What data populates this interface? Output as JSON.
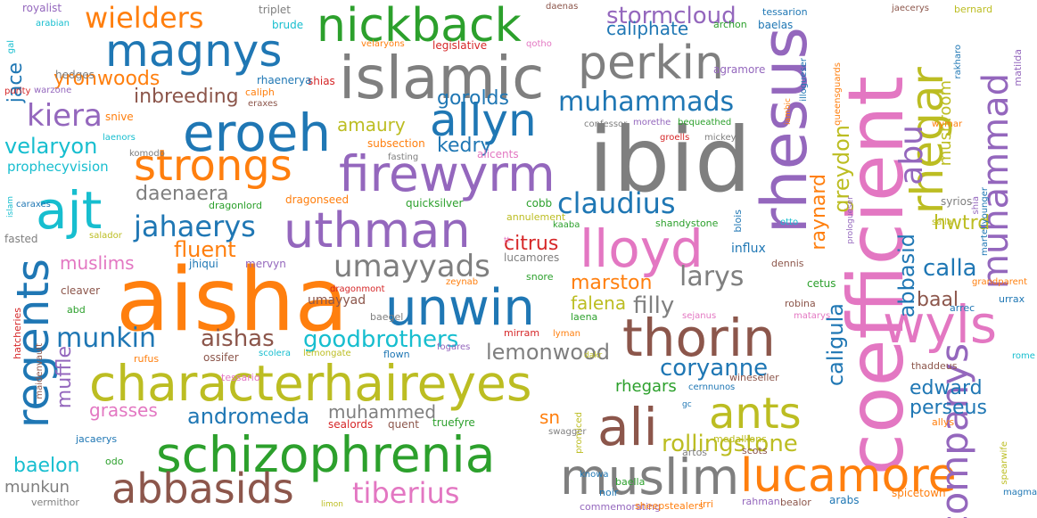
{
  "palette": {
    "blue": "#1f77b4",
    "orange": "#ff7f0e",
    "green": "#2ca02c",
    "red": "#d62728",
    "purple": "#9467bd",
    "brown": "#8c564b",
    "pink": "#e377c2",
    "gray": "#7f7f7f",
    "olive": "#bcbd22",
    "cyan": "#17becf"
  },
  "words": [
    {
      "text": "ibid",
      "color": "gray"
    },
    {
      "text": "aisha",
      "color": "orange"
    },
    {
      "text": "coefficient",
      "color": "pink"
    },
    {
      "text": "rhesus",
      "color": "purple"
    },
    {
      "text": "characterhaireyes",
      "color": "olive"
    },
    {
      "text": "schizophrenia",
      "color": "green"
    },
    {
      "text": "islamic",
      "color": "gray"
    },
    {
      "text": "nickback",
      "color": "green"
    },
    {
      "text": "magnys",
      "color": "blue"
    },
    {
      "text": "eroeh",
      "color": "blue"
    },
    {
      "text": "strongs",
      "color": "orange"
    },
    {
      "text": "firewyrm",
      "color": "purple"
    },
    {
      "text": "uthman",
      "color": "purple"
    },
    {
      "text": "ajt",
      "color": "cyan"
    },
    {
      "text": "perkin",
      "color": "gray"
    },
    {
      "text": "allyn",
      "color": "blue"
    },
    {
      "text": "thorin",
      "color": "brown"
    },
    {
      "text": "lloyd",
      "color": "pink"
    },
    {
      "text": "unwin",
      "color": "blue"
    },
    {
      "text": "muslim",
      "color": "gray"
    },
    {
      "text": "lucamore",
      "color": "orange"
    },
    {
      "text": "ali",
      "color": "brown"
    },
    {
      "text": "ants",
      "color": "olive"
    },
    {
      "text": "wyls",
      "color": "pink"
    },
    {
      "text": "abbasids",
      "color": "brown"
    },
    {
      "text": "regents",
      "color": "blue"
    },
    {
      "text": "muhammad",
      "color": "purple"
    },
    {
      "text": "rhegar",
      "color": "olive"
    },
    {
      "text": "companys",
      "color": "purple"
    },
    {
      "text": "wielders",
      "color": "orange"
    },
    {
      "text": "claudius",
      "color": "blue"
    },
    {
      "text": "jahaerys",
      "color": "blue"
    },
    {
      "text": "umayyads",
      "color": "gray"
    },
    {
      "text": "muhammads",
      "color": "blue"
    },
    {
      "text": "kiera",
      "color": "purple"
    },
    {
      "text": "tiberius",
      "color": "pink"
    },
    {
      "text": "goodbrothers",
      "color": "cyan"
    },
    {
      "text": "abu",
      "color": "purple"
    },
    {
      "text": "larys",
      "color": "gray"
    },
    {
      "text": "munkin",
      "color": "blue"
    },
    {
      "text": "stormcloud",
      "color": "purple"
    },
    {
      "text": "lemonwood",
      "color": "gray"
    },
    {
      "text": "aishas",
      "color": "brown"
    },
    {
      "text": "andromeda",
      "color": "blue"
    },
    {
      "text": "coryanne",
      "color": "blue"
    },
    {
      "text": "rollingstone",
      "color": "olive"
    },
    {
      "text": "daenaera",
      "color": "gray"
    },
    {
      "text": "yronwoods",
      "color": "orange"
    },
    {
      "text": "inbreeding",
      "color": "brown"
    },
    {
      "text": "velaryon",
      "color": "cyan"
    },
    {
      "text": "fluent",
      "color": "orange"
    },
    {
      "text": "citrus",
      "color": "red"
    },
    {
      "text": "marston",
      "color": "orange"
    },
    {
      "text": "falena",
      "color": "olive"
    },
    {
      "text": "filly",
      "color": "gray"
    },
    {
      "text": "calla",
      "color": "blue"
    },
    {
      "text": "baal",
      "color": "brown"
    },
    {
      "text": "caligula",
      "color": "blue"
    },
    {
      "text": "perseus",
      "color": "blue"
    },
    {
      "text": "edward",
      "color": "blue"
    },
    {
      "text": "hwtrd",
      "color": "olive"
    },
    {
      "text": "abbasid",
      "color": "blue"
    },
    {
      "text": "raynard",
      "color": "orange"
    },
    {
      "text": "greydon",
      "color": "olive"
    },
    {
      "text": "muffle",
      "color": "purple"
    },
    {
      "text": "jace",
      "color": "blue"
    },
    {
      "text": "gorolds",
      "color": "blue"
    },
    {
      "text": "amaury",
      "color": "olive"
    },
    {
      "text": "kedry",
      "color": "blue"
    },
    {
      "text": "caliphate",
      "color": "blue"
    },
    {
      "text": "muslims",
      "color": "pink"
    },
    {
      "text": "grasses",
      "color": "pink"
    },
    {
      "text": "baelon",
      "color": "cyan"
    },
    {
      "text": "munkun",
      "color": "gray"
    },
    {
      "text": "muhammed",
      "color": "gray"
    },
    {
      "text": "rhegars",
      "color": "green"
    },
    {
      "text": "sn",
      "color": "orange"
    },
    {
      "text": "mushroom",
      "color": "olive"
    },
    {
      "text": "prophecyvision",
      "color": "cyan"
    },
    {
      "text": "royalist",
      "color": "purple"
    },
    {
      "text": "arabian",
      "color": "cyan"
    },
    {
      "text": "gal",
      "color": "cyan"
    },
    {
      "text": "hedges",
      "color": "gray"
    },
    {
      "text": "purity",
      "color": "red"
    },
    {
      "text": "warzone",
      "color": "purple"
    },
    {
      "text": "triplet",
      "color": "gray"
    },
    {
      "text": "brude",
      "color": "cyan"
    },
    {
      "text": "shias",
      "color": "red"
    },
    {
      "text": "caliph",
      "color": "orange"
    },
    {
      "text": "rhaenerya",
      "color": "blue"
    },
    {
      "text": "eraxes",
      "color": "brown"
    },
    {
      "text": "snive",
      "color": "orange"
    },
    {
      "text": "laenors",
      "color": "cyan"
    },
    {
      "text": "komodo",
      "color": "gray"
    },
    {
      "text": "legislative",
      "color": "red"
    },
    {
      "text": "velaryons",
      "color": "orange"
    },
    {
      "text": "qotho",
      "color": "pink"
    },
    {
      "text": "daenas",
      "color": "brown"
    },
    {
      "text": "archon",
      "color": "green"
    },
    {
      "text": "baelas",
      "color": "blue"
    },
    {
      "text": "tessarion",
      "color": "blue"
    },
    {
      "text": "bernard",
      "color": "olive"
    },
    {
      "text": "jaecerys",
      "color": "brown"
    },
    {
      "text": "agramore",
      "color": "purple"
    },
    {
      "text": "subsection",
      "color": "orange"
    },
    {
      "text": "fasting",
      "color": "gray"
    },
    {
      "text": "alicents",
      "color": "pink"
    },
    {
      "text": "confessor",
      "color": "gray"
    },
    {
      "text": "morethe",
      "color": "purple"
    },
    {
      "text": "bequeathed",
      "color": "green"
    },
    {
      "text": "groells",
      "color": "red"
    },
    {
      "text": "mickey",
      "color": "gray"
    },
    {
      "text": "wymar",
      "color": "orange"
    },
    {
      "text": "rakharo",
      "color": "blue"
    },
    {
      "text": "matilda",
      "color": "purple"
    },
    {
      "text": "dragonseed",
      "color": "orange"
    },
    {
      "text": "quicksilver",
      "color": "green"
    },
    {
      "text": "dragonlord",
      "color": "green"
    },
    {
      "text": "cobb",
      "color": "green"
    },
    {
      "text": "shandystone",
      "color": "green"
    },
    {
      "text": "annulement",
      "color": "olive"
    },
    {
      "text": "kaaba",
      "color": "green"
    },
    {
      "text": "caraxes",
      "color": "blue"
    },
    {
      "text": "islam",
      "color": "cyan"
    },
    {
      "text": "fasted",
      "color": "gray"
    },
    {
      "text": "salador",
      "color": "olive"
    },
    {
      "text": "jhiqui",
      "color": "blue"
    },
    {
      "text": "mervyn",
      "color": "purple"
    },
    {
      "text": "lucamores",
      "color": "gray"
    },
    {
      "text": "dragonmont",
      "color": "red"
    },
    {
      "text": "zeynab",
      "color": "orange"
    },
    {
      "text": "snore",
      "color": "green"
    },
    {
      "text": "umayyad",
      "color": "brown"
    },
    {
      "text": "baegel",
      "color": "gray"
    },
    {
      "text": "mirram",
      "color": "red"
    },
    {
      "text": "lyman",
      "color": "orange"
    },
    {
      "text": "laena",
      "color": "green"
    },
    {
      "text": "sejanus",
      "color": "pink"
    },
    {
      "text": "matarys",
      "color": "pink"
    },
    {
      "text": "cleaver",
      "color": "brown"
    },
    {
      "text": "abd",
      "color": "green"
    },
    {
      "text": "hatcheries",
      "color": "red"
    },
    {
      "text": "maidenvault",
      "color": "brown"
    },
    {
      "text": "rufus",
      "color": "orange"
    },
    {
      "text": "ossifer",
      "color": "brown"
    },
    {
      "text": "scolera",
      "color": "cyan"
    },
    {
      "text": "lemongate",
      "color": "olive"
    },
    {
      "text": "flown",
      "color": "blue"
    },
    {
      "text": "fogares",
      "color": "purple"
    },
    {
      "text": "cetus",
      "color": "green"
    },
    {
      "text": "influx",
      "color": "blue"
    },
    {
      "text": "dennis",
      "color": "brown"
    },
    {
      "text": "blois",
      "color": "blue"
    },
    {
      "text": "otto",
      "color": "cyan"
    },
    {
      "text": "syrios",
      "color": "gray"
    },
    {
      "text": "salla",
      "color": "olive"
    },
    {
      "text": "shia",
      "color": "purple"
    },
    {
      "text": "martellyounger",
      "color": "blue"
    },
    {
      "text": "prologueser",
      "color": "purple"
    },
    {
      "text": "grandparent",
      "color": "orange"
    },
    {
      "text": "urrax",
      "color": "blue"
    },
    {
      "text": "arrec",
      "color": "blue"
    },
    {
      "text": "robina",
      "color": "brown"
    },
    {
      "text": "thaddeus",
      "color": "brown"
    },
    {
      "text": "rome",
      "color": "cyan"
    },
    {
      "text": "cernnunos",
      "color": "blue"
    },
    {
      "text": "wineseller",
      "color": "brown"
    },
    {
      "text": "tessario",
      "color": "pink"
    },
    {
      "text": "sealords",
      "color": "red"
    },
    {
      "text": "quent",
      "color": "brown"
    },
    {
      "text": "truefyre",
      "color": "green"
    },
    {
      "text": "swagger",
      "color": "gray"
    },
    {
      "text": "jacaerys",
      "color": "blue"
    },
    {
      "text": "odo",
      "color": "green"
    },
    {
      "text": "vermithor",
      "color": "gray"
    },
    {
      "text": "promiced",
      "color": "olive"
    },
    {
      "text": "knowa",
      "color": "blue"
    },
    {
      "text": "baella",
      "color": "green"
    },
    {
      "text": "artos",
      "color": "gray"
    },
    {
      "text": "scots",
      "color": "brown"
    },
    {
      "text": "medallions",
      "color": "olive"
    },
    {
      "text": "allys",
      "color": "orange"
    },
    {
      "text": "spearwife",
      "color": "olive"
    },
    {
      "text": "magma",
      "color": "blue"
    },
    {
      "text": "noir",
      "color": "blue"
    },
    {
      "text": "commemorating",
      "color": "purple"
    },
    {
      "text": "sheepstealers",
      "color": "orange"
    },
    {
      "text": "irri",
      "color": "orange"
    },
    {
      "text": "rahman",
      "color": "purple"
    },
    {
      "text": "bealor",
      "color": "brown"
    },
    {
      "text": "arabs",
      "color": "blue"
    },
    {
      "text": "spicetown",
      "color": "orange"
    },
    {
      "text": "limon",
      "color": "olive"
    },
    {
      "text": "iambic",
      "color": "orange"
    },
    {
      "text": "illogueser",
      "color": "blue"
    },
    {
      "text": "queensguards",
      "color": "orange"
    },
    {
      "text": "gc",
      "color": "blue"
    },
    {
      "text": "tt",
      "color": "pink"
    },
    {
      "text": "dakr",
      "color": "olive"
    }
  ]
}
